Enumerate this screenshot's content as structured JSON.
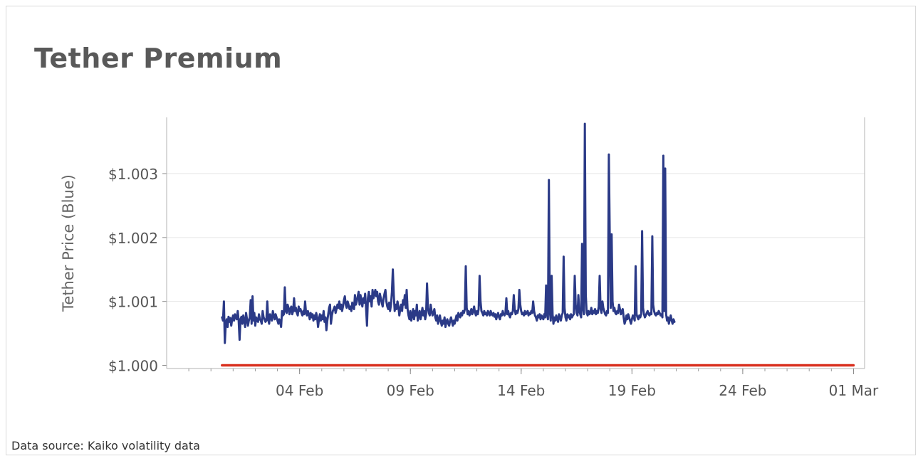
{
  "title": "Tether Premium",
  "source_note": "Data source: Kaiko volatility data",
  "colors": {
    "tether_line": "#2b3a87",
    "peg_line": "#d9301f",
    "grid": "#e6e6e6",
    "axis": "#b3b3b3"
  },
  "chart_data": {
    "type": "line",
    "ylabel": "Tether Price (Blue)",
    "xlabel": "",
    "x_ticks": [
      "04 Feb",
      "09 Feb",
      "14 Feb",
      "19 Feb",
      "24 Feb",
      "01 Mar"
    ],
    "y_ticks": [
      "$1.000",
      "$1.001",
      "$1.002",
      "$1.003"
    ],
    "ylim": [
      0.99995,
      1.00388
    ],
    "xlim": [
      "2018-01-29",
      "2018-03-01T12:00"
    ],
    "grid": true,
    "legend": "none",
    "series": [
      {
        "color": "#2b3a87",
        "x_start": "2018-01-31T12:00",
        "x_step_hours": 1,
        "values": [
          1.00075,
          1.0007,
          1.001,
          1.00035,
          1.00065,
          1.00072,
          1.0006,
          1.00076,
          1.00068,
          1.00074,
          1.00062,
          1.00072,
          1.00078,
          1.0007,
          1.0008,
          1.00074,
          1.00072,
          1.00085,
          1.0007,
          1.0004,
          1.00072,
          1.00076,
          1.00065,
          1.00078,
          1.0007,
          1.0006,
          1.00082,
          1.00072,
          1.00062,
          1.0007,
          1.00075,
          1.00102,
          1.00065,
          1.00108,
          1.0007,
          1.00082,
          1.00062,
          1.00075,
          1.0007,
          1.00068,
          1.0008,
          1.00072,
          1.0007,
          1.00065,
          1.00085,
          1.00075,
          1.00072,
          1.00068,
          1.0007,
          1.001,
          1.00072,
          1.00065,
          1.0008,
          1.00075,
          1.0007,
          1.00085,
          1.00078,
          1.00072,
          1.0008,
          1.00075,
          1.0007,
          1.00065,
          1.00072,
          1.00068,
          1.0006,
          1.00085,
          1.00078,
          1.0008,
          1.00122,
          1.00085,
          1.00082,
          1.00095,
          1.0009,
          1.0008,
          1.00088,
          1.00092,
          1.0008,
          1.00085,
          1.00105,
          1.00085,
          1.0009,
          1.00082,
          1.00078,
          1.00092,
          1.00085,
          1.00088,
          1.00082,
          1.00078,
          1.00085,
          1.0008,
          1.001,
          1.00082,
          1.00078,
          1.00085,
          1.0008,
          1.00072,
          1.00082,
          1.00075,
          1.0008,
          1.0007,
          1.00078,
          1.00072,
          1.00082,
          1.00075,
          1.0006,
          1.00072,
          1.0008,
          1.0007,
          1.00078,
          1.00072,
          1.00085,
          1.00068,
          1.00075,
          1.00055,
          1.0007,
          1.0008,
          1.0009,
          1.00095,
          1.00065,
          1.00078,
          1.00085,
          1.00088,
          1.00092,
          1.00082,
          1.00088,
          1.00095,
          1.0009,
          1.001,
          1.00088,
          1.00095,
          1.00085,
          1.00092,
          1.00102,
          1.00108,
          1.00095,
          1.0009,
          1.001,
          1.00095,
          1.00088,
          1.00092,
          1.00085,
          1.00098,
          1.00092,
          1.00088,
          1.0011,
          1.00095,
          1.001,
          1.00108,
          1.00115,
          1.00095,
          1.0011,
          1.001,
          1.00092,
          1.00105,
          1.00098,
          1.00112,
          1.0009,
          1.00062,
          1.00105,
          1.00115,
          1.001,
          1.00108,
          1.00092,
          1.00118,
          1.00105,
          1.00112,
          1.00118,
          1.00108,
          1.00115,
          1.001,
          1.00095,
          1.00112,
          1.00105,
          1.00098,
          1.00092,
          1.00105,
          1.00112,
          1.00118,
          1.001,
          1.00092,
          1.00088,
          1.00098,
          1.00085,
          1.00095,
          1.00115,
          1.0015,
          1.0011,
          1.00085,
          1.00095,
          1.00088,
          1.001,
          1.00092,
          1.00078,
          1.00088,
          1.00095,
          1.00085,
          1.00102,
          1.00095,
          1.0011,
          1.0009,
          1.00118,
          1.00088,
          1.00078,
          1.00072,
          1.00085,
          1.0007,
          1.00078,
          1.00088,
          1.00072,
          1.00085,
          1.00078,
          1.00095,
          1.0007,
          1.00078,
          1.00085,
          1.00072,
          1.0008,
          1.0009,
          1.00078,
          1.00085,
          1.00072,
          1.0008,
          1.00128,
          1.0009,
          1.00082,
          1.00078,
          1.00095,
          1.00085,
          1.00078,
          1.00082,
          1.00088,
          1.00075,
          1.0007,
          1.00078,
          1.00065,
          1.00072,
          1.00078,
          1.00068,
          1.00062,
          1.0007,
          1.00065,
          1.00075,
          1.0006,
          1.00068,
          1.00072,
          1.00065,
          1.00062,
          1.0007,
          1.00075,
          1.00068,
          1.00062,
          1.0007,
          1.00065,
          1.00072,
          1.00078,
          1.0007,
          1.00082,
          1.00078,
          1.00075,
          1.00082,
          1.00078,
          1.00085,
          1.00082,
          1.00088,
          1.00155,
          1.0009,
          1.0008,
          1.00085,
          1.00078,
          1.00082,
          1.00088,
          1.0008,
          1.00085,
          1.00092,
          1.00082,
          1.00078,
          1.00085,
          1.0008,
          1.00088,
          1.0014,
          1.001,
          1.00085,
          1.00082,
          1.00078,
          1.00085,
          1.0008,
          1.00082,
          1.00078,
          1.00085,
          1.00082,
          1.00078,
          1.00085,
          1.0008,
          1.00078,
          1.00082,
          1.00076,
          1.0008,
          1.00072,
          1.00078,
          1.00082,
          1.00075,
          1.00072,
          1.0008,
          1.00078,
          1.00085,
          1.0008,
          1.00078,
          1.00082,
          1.00105,
          1.0008,
          1.00085,
          1.00078,
          1.00075,
          1.00082,
          1.0008,
          1.00085,
          1.0011,
          1.00088,
          1.0008,
          1.00085,
          1.00082,
          1.00088,
          1.00118,
          1.00095,
          1.00085,
          1.0008,
          1.00082,
          1.00078,
          1.00085,
          1.0008,
          1.00082,
          1.00085,
          1.00078,
          1.00082,
          1.0008,
          1.00085,
          1.00082,
          1.001,
          1.00085,
          1.00078,
          1.00075,
          1.0007,
          1.00078,
          1.00075,
          1.0008,
          1.00072,
          1.00078,
          1.00075,
          1.00072,
          1.0008,
          1.00075,
          1.00125,
          1.0008,
          1.00072,
          1.0029,
          1.00085,
          1.0007,
          1.0014,
          1.0008,
          1.00065,
          1.00075,
          1.0007,
          1.00078,
          1.00072,
          1.00068,
          1.0008,
          1.00075,
          1.0007,
          1.00078,
          1.00082,
          1.0017,
          1.0009,
          1.00075,
          1.0007,
          1.0008,
          1.00075,
          1.00078,
          1.00072,
          1.0008,
          1.00075,
          1.00078,
          1.0008,
          1.0014,
          1.00095,
          1.00082,
          1.00078,
          1.0011,
          1.00085,
          1.0008,
          1.00075,
          1.0019,
          1.0009,
          1.0008,
          1.00378,
          1.0011,
          1.00082,
          1.00078,
          1.00085,
          1.0008,
          1.00082,
          1.0009,
          1.0008,
          1.00085,
          1.00082,
          1.00088,
          1.0008,
          1.00085,
          1.00082,
          1.00092,
          1.0014,
          1.00088,
          1.00082,
          1.001,
          1.0009,
          1.00085,
          1.0008,
          1.00078,
          1.00085,
          1.00082,
          1.0033,
          1.002,
          1.0009,
          1.00205,
          1.001,
          1.00085,
          1.0009,
          1.00082,
          1.0008,
          1.00085,
          1.00082,
          1.00095,
          1.00088,
          1.0008,
          1.00085,
          1.00088,
          1.00075,
          1.00065,
          1.0007,
          1.00078,
          1.00072,
          1.0008,
          1.00075,
          1.0007,
          1.00065,
          1.00072,
          1.00078,
          1.00075,
          1.0007,
          1.00155,
          1.0008,
          1.00075,
          1.00072,
          1.00078,
          1.00075,
          1.0008,
          1.0021,
          1.0009,
          1.0008,
          1.00075,
          1.00078,
          1.00082,
          1.00085,
          1.0008,
          1.00078,
          1.00082,
          1.0008,
          1.00202,
          1.00095,
          1.00085,
          1.0008,
          1.00078,
          1.00082,
          1.0008,
          1.00085,
          1.00082,
          1.00078,
          1.0008,
          1.00075,
          1.00328,
          1.00085,
          1.00308,
          1.0008,
          1.0007,
          1.00075,
          1.00065,
          1.00072,
          1.00078,
          1.0007,
          1.00065,
          1.00072,
          1.00068
        ]
      },
      {
        "color": "#d9301f",
        "x": [
          "2018-01-31T12:00",
          "2018-03-01T00:00"
        ],
        "values": [
          1.0,
          1.0
        ]
      }
    ]
  }
}
